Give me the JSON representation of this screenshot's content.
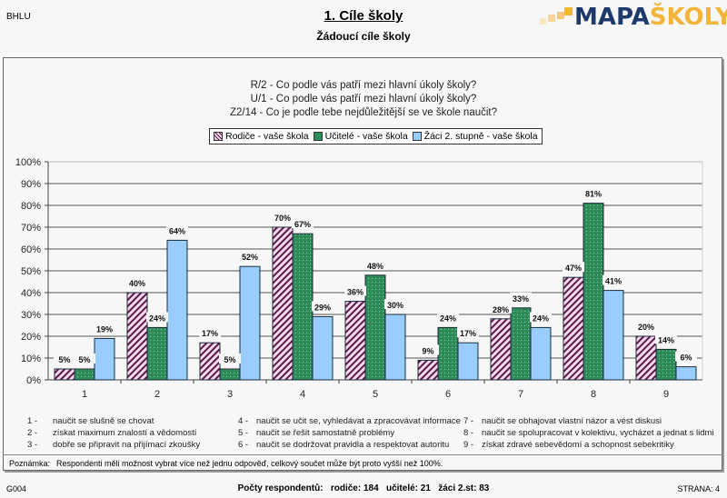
{
  "header": {
    "school_code": "BHLU",
    "title": "1. Cíle školy",
    "subtitle": "Žádoucí cíle školy",
    "logo": {
      "part1": "MAPA",
      "part2": "ŠKOLY",
      "color_dark": "#1d3a6b",
      "color_accent": "#f2b53a"
    }
  },
  "questions": [
    "R/2 - Co podle vás patří mezi hlavní úkoly školy?",
    "U/1 - Co podle vás patří mezi hlavní úkoly školy?",
    "Z2/14 - Co je podle tebe nejdůležitější se ve škole naučit?"
  ],
  "legend": [
    {
      "label": "Rodiče - vaše škola",
      "color": "#f4d9ec",
      "pattern": "diagonal-stripes"
    },
    {
      "label": "Učitelé - vaše škola",
      "color": "#2e8b57",
      "pattern": "dotted"
    },
    {
      "label": "Žáci 2. stupně - vaše škola",
      "color": "#99ccff",
      "pattern": "solid"
    }
  ],
  "chart_data": {
    "type": "bar",
    "title": "",
    "xlabel": "",
    "ylabel": "",
    "ylim": [
      0,
      100
    ],
    "yticks": [
      "0%",
      "10%",
      "20%",
      "30%",
      "40%",
      "50%",
      "60%",
      "70%",
      "80%",
      "90%",
      "100%"
    ],
    "grid": true,
    "legend_position": "top-center",
    "categories": [
      "1",
      "2",
      "3",
      "4",
      "5",
      "6",
      "7",
      "8",
      "9"
    ],
    "series": [
      {
        "name": "Rodiče - vaše škola",
        "values": [
          5,
          40,
          17,
          70,
          36,
          9,
          28,
          47,
          20
        ]
      },
      {
        "name": "Učitelé - vaše škola",
        "values": [
          5,
          24,
          5,
          67,
          48,
          24,
          33,
          81,
          14
        ]
      },
      {
        "name": "Žáci 2. stupně - vaše škola",
        "values": [
          19,
          64,
          52,
          29,
          30,
          17,
          24,
          41,
          6
        ]
      }
    ],
    "value_label_suffix": "%"
  },
  "descriptions": [
    {
      "num": "1",
      "text": "naučit se slušně se chovat"
    },
    {
      "num": "2",
      "text": "získat maximum znalostí a vědomostí"
    },
    {
      "num": "3",
      "text": "dobře se připravit na přijímací zkoušky"
    },
    {
      "num": "4",
      "text": "naučit se učit se, vyhledávat a zpracovávat informace"
    },
    {
      "num": "5",
      "text": "naučit se řešit samostatně problémy"
    },
    {
      "num": "6",
      "text": "naučit se dodržovat pravidla a respektovat autoritu"
    },
    {
      "num": "7",
      "text": "naučit se obhajovat vlastní názor a vést diskusi"
    },
    {
      "num": "8",
      "text": "naučit se spolupracovat v kolektivu, vycházet a jednat s lidmi"
    },
    {
      "num": "9",
      "text": "získat zdravé sebevědomí a schopnost sebekritiky"
    }
  ],
  "note": {
    "label": "Poznámka:",
    "text": "Respondenti měli možnost vybrat více než jednu odpověď, celkový součet může být proto vyšší než 100%."
  },
  "footer": {
    "code": "G004",
    "counts": "Počty respondentů:   rodiče: 184   učitelé: 21   žáci 2.st: 83",
    "page": "STRANA: 4"
  }
}
